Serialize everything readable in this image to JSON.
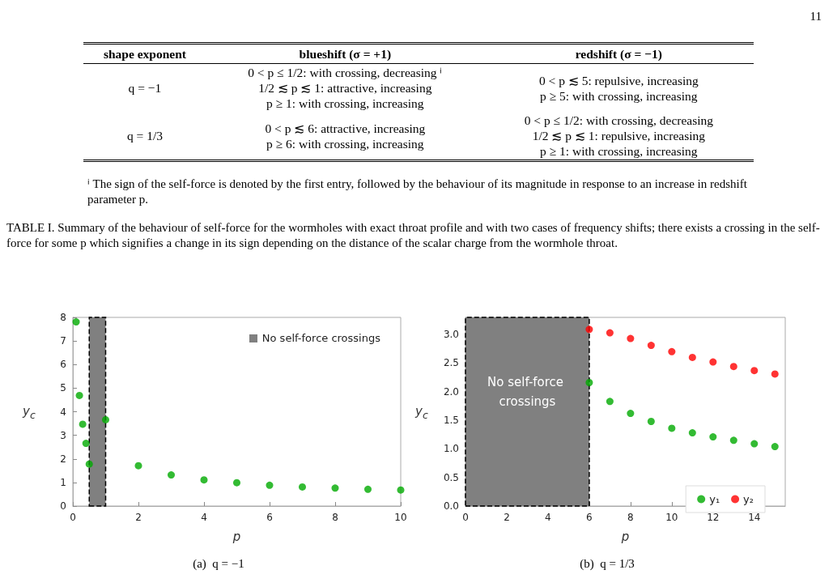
{
  "chart_data": [
    {
      "type": "other",
      "annotations": [
        "11",
        "shape exponent",
        "blueshift (σ = +1)",
        "redshift (σ = −1)",
        "q = −1",
        "0 < p ≤ 1/2: with crossing, decreasing ⁱ",
        "1/2 ≲ p ≲ 1: attractive, increasing",
        "p ≥ 1: with crossing, increasing",
        "0 < p ≲ 5: repulsive, increasing",
        "p ≥ 5: with crossing, increasing",
        "q = 1/3",
        "0 < p ≲ 6: attractive, increasing",
        "p ≥ 6: with crossing, increasing",
        "0 < p ≤ 1/2: with crossing, decreasing",
        "1/2 ≲ p ≲ 1: repulsive, increasing",
        "p ≥ 1: with crossing, increasing",
        "ⁱ The sign of the self-force is denoted by the first entry, followed by the behaviour of its magnitude in response to an increase in redshift parameter p.",
        "TABLE I. Summary of the behaviour of self-force for the wormholes with exact throat profile and with two cases of frequency shifts; there exists a crossing in the self-force for some p which signifies a change in its sign depending on the distance of the scalar charge from the wormhole throat."
      ]
    },
    {
      "type": "scatter",
      "xlabel": "p",
      "ylabel": "y$_{c}$",
      "annotations": [
        "(a)  q = −1"
      ],
      "x": [
        0.1,
        0.2,
        0.3,
        0.4,
        0.5,
        1,
        2,
        3,
        4,
        5,
        6,
        7,
        8,
        9,
        10
      ],
      "series": [
        {
          "color": "#00aa00",
          "values": [
            7.81,
            4.69,
            3.47,
            2.66,
            1.78,
            3.66,
            1.71,
            1.32,
            1.11,
            0.99,
            0.88,
            0.81,
            0.76,
            0.71,
            0.68
          ]
        }
      ],
      "bands": [
        {
          "axis": "x",
          "from": 0.5,
          "to": 1,
          "label": "No self-force crossings",
          "color": "#808080"
        }
      ],
      "xlim": [
        0,
        10
      ],
      "ylim": [
        0,
        8
      ],
      "xticks": [
        0,
        2,
        4,
        6,
        8,
        10
      ],
      "yticks": [
        0,
        1,
        2,
        3,
        4,
        5,
        6,
        7,
        8
      ],
      "marker": "circle",
      "grid": false,
      "legend": "top right"
    },
    {
      "type": "scatter",
      "xlabel": "p",
      "ylabel": "y$_{c}$",
      "annotations": [
        "(b)  q = 1/3"
      ],
      "x": [
        6,
        7,
        8,
        9,
        10,
        11,
        12,
        13,
        14,
        15
      ],
      "series": [
        {
          "name": "y₁",
          "color": "#00aa00",
          "values": [
            2.16,
            1.83,
            1.62,
            1.48,
            1.36,
            1.28,
            1.21,
            1.15,
            1.09,
            1.04
          ]
        },
        {
          "name": "y₂",
          "color": "#ff0000",
          "values": [
            3.09,
            3.03,
            2.93,
            2.81,
            2.7,
            2.6,
            2.52,
            2.44,
            2.37,
            2.31
          ]
        }
      ],
      "bands": [
        {
          "axis": "x",
          "from": 0,
          "to": 6,
          "label": "No self-force crossings",
          "color": "#808080"
        }
      ],
      "xlim": [
        0,
        15.5
      ],
      "ylim": [
        0,
        3.3
      ],
      "xticks": [
        0,
        2,
        4,
        6,
        8,
        10,
        12,
        14
      ],
      "yticks": [
        {
          "value": 0,
          "label": "0.0"
        },
        {
          "value": 0.5,
          "label": "0.5"
        },
        {
          "value": 1,
          "label": "1.0"
        },
        {
          "value": 1.5,
          "label": "1.5"
        },
        {
          "value": 2,
          "label": "2.0"
        },
        {
          "value": 2.5,
          "label": "2.5"
        },
        {
          "value": 3,
          "label": "3.0"
        }
      ],
      "marker": "circle",
      "grid": false,
      "legend": "bottom right"
    }
  ]
}
